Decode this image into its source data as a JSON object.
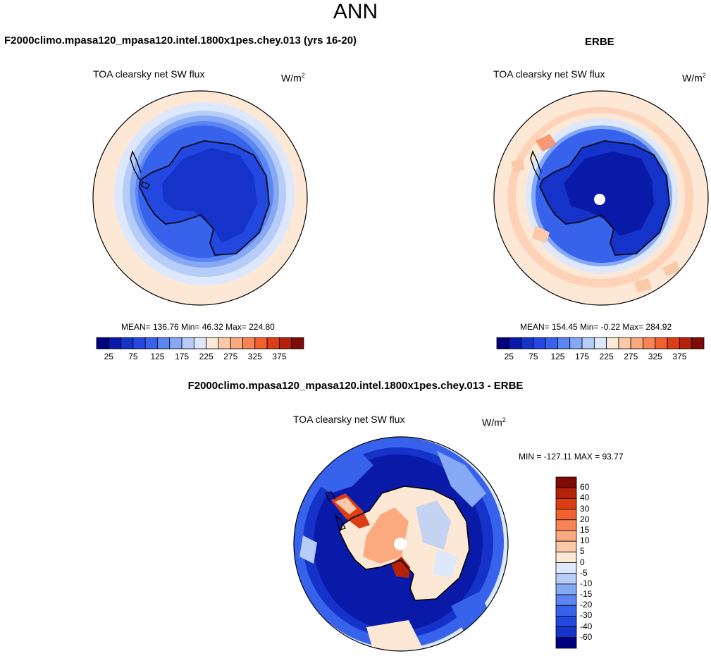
{
  "title": "ANN",
  "panel_test": {
    "header": "F2000climo.mpasa120_mpasa120.intel.1800x1pes.chey.013 (yrs 16-20)",
    "variable": "TOA clearsky net SW flux",
    "units": "W/m",
    "units_exp": "2",
    "stats": "MEAN= 136.76  Min=  46.32  Max= 224.80"
  },
  "panel_obs": {
    "header": "ERBE",
    "variable": "TOA clearsky net SW flux",
    "units": "W/m",
    "units_exp": "2",
    "stats": "MEAN= 154.45  Min=  -0.22  Max= 284.92"
  },
  "panel_diff": {
    "header": "F2000climo.mpasa120_mpasa120.intel.1800x1pes.chey.013 - ERBE",
    "variable": "TOA clearsky net SW flux",
    "units": "W/m",
    "units_exp": "2",
    "stats": "MIN = -127.11 MAX =  93.77"
  },
  "colorbar_main": {
    "ticks": [
      "25",
      "75",
      "125",
      "175",
      "225",
      "275",
      "325",
      "375"
    ],
    "colors": [
      "#00007e",
      "#0a1aa8",
      "#1533c8",
      "#2248df",
      "#3762ec",
      "#5a85f2",
      "#86a9f6",
      "#b6cdfa",
      "#dde8fc",
      "#fde8d6",
      "#fcc9a8",
      "#fbaa80",
      "#f88456",
      "#f2602d",
      "#dc3d14",
      "#b6210a",
      "#7e0b04"
    ]
  },
  "colorbar_diff": {
    "ticks": [
      "60",
      "40",
      "30",
      "20",
      "15",
      "10",
      "5",
      "0",
      "-5",
      "-10",
      "-15",
      "-20",
      "-30",
      "-40",
      "-60"
    ],
    "colors": [
      "#7e0b04",
      "#b6210a",
      "#dc3d14",
      "#f2602d",
      "#f88456",
      "#fbaa80",
      "#fcc9a8",
      "#fde8d6",
      "#dde8fc",
      "#b6cdfa",
      "#86a9f6",
      "#5a85f2",
      "#3762ec",
      "#2248df",
      "#1533c8",
      "#00007e"
    ]
  }
}
